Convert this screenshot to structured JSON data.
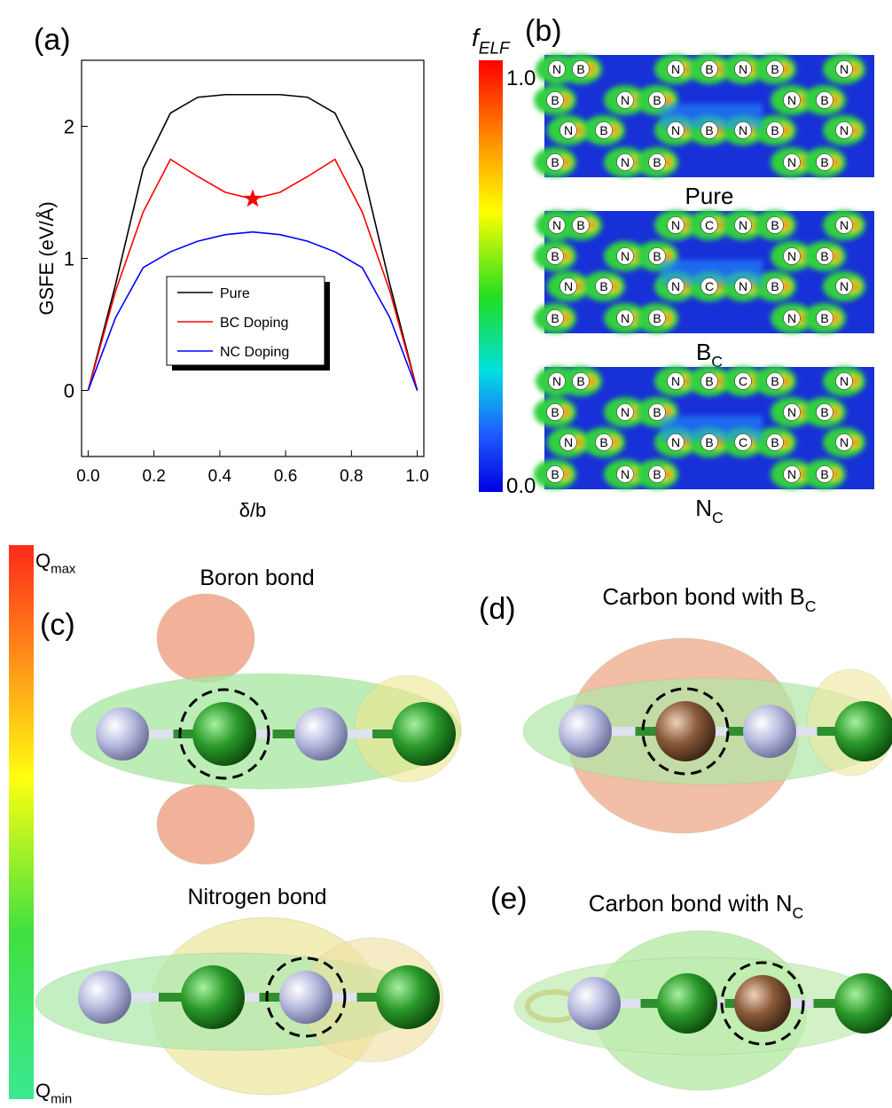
{
  "chart_data": {
    "type": "line",
    "panel_label": "(a)",
    "xlabel": "δ/b",
    "ylabel": "GSFE (eV/Å)",
    "x": [
      0,
      0.083,
      0.167,
      0.25,
      0.333,
      0.417,
      0.5,
      0.583,
      0.667,
      0.75,
      0.833,
      0.917,
      1
    ],
    "series": [
      {
        "name": "Pure",
        "color": "#000000",
        "values": [
          0,
          0.8,
          1.68,
          2.1,
          2.22,
          2.24,
          2.24,
          2.24,
          2.22,
          2.1,
          1.68,
          0.8,
          0
        ]
      },
      {
        "name": "BC Doping",
        "color": "#ff0000",
        "values": [
          0,
          0.75,
          1.35,
          1.75,
          1.62,
          1.5,
          1.45,
          1.5,
          1.62,
          1.75,
          1.35,
          0.75,
          0
        ]
      },
      {
        "name": "NC Doping",
        "color": "#0000ff",
        "values": [
          0,
          0.55,
          0.93,
          1.05,
          1.13,
          1.18,
          1.2,
          1.18,
          1.13,
          1.05,
          0.93,
          0.55,
          0
        ]
      }
    ],
    "marker": {
      "x": 0.5,
      "y": 1.45,
      "color": "#ff0000"
    },
    "xlim": [
      -0.02,
      1.02
    ],
    "ylim": [
      -0.5,
      2.5
    ],
    "xticks": [
      {
        "value": 0,
        "label": "0.0"
      },
      {
        "value": 0.2,
        "label": "0.2"
      },
      {
        "value": 0.4,
        "label": "0.4"
      },
      {
        "value": 0.6,
        "label": "0.6"
      },
      {
        "value": 0.8,
        "label": "0.8"
      },
      {
        "value": 1,
        "label": "1.0"
      }
    ],
    "yticks": [
      0,
      1,
      2
    ],
    "legend": "center"
  },
  "elf": {
    "panel_label": "(b)",
    "colorbar": {
      "title": {
        "base": "f",
        "sub": "ELF"
      },
      "max_label": "1.0",
      "min_label": "0.0"
    },
    "maps": [
      {
        "caption": {
          "base": "Pure"
        },
        "atoms": [
          "N",
          "B",
          "N",
          "B",
          "N",
          "B",
          "N",
          "B",
          "N",
          "B",
          "N",
          "B",
          "N",
          "B",
          "N",
          "B",
          "N",
          "B",
          "N",
          "B",
          "N",
          "B",
          "N",
          "B"
        ]
      },
      {
        "caption": {
          "base": "B",
          "sub": "C"
        },
        "atoms": [
          "N",
          "B",
          "N",
          "C",
          "N",
          "B",
          "N",
          "B",
          "N",
          "B",
          "N",
          "B",
          "N",
          "B",
          "N",
          "C",
          "N",
          "B",
          "N",
          "B",
          "N",
          "B",
          "N",
          "B"
        ]
      },
      {
        "caption": {
          "base": "N",
          "sub": "C"
        },
        "atoms": [
          "N",
          "B",
          "N",
          "B",
          "C",
          "B",
          "N",
          "B",
          "N",
          "B",
          "N",
          "B",
          "N",
          "B",
          "N",
          "B",
          "C",
          "B",
          "N",
          "B",
          "N",
          "B",
          "N",
          "B"
        ]
      }
    ]
  },
  "charge": {
    "colorbar": {
      "max": {
        "base": "Q",
        "sub": "max"
      },
      "min": {
        "base": "Q",
        "sub": "min"
      }
    },
    "c": {
      "label": "(c)",
      "top_title": "Boron bond",
      "bottom_title": "Nitrogen bond"
    },
    "d": {
      "label": "(d)",
      "title": {
        "base": "Carbon bond with B",
        "sub": "C"
      }
    },
    "e": {
      "label": "(e)",
      "title": {
        "base": "Carbon bond with N",
        "sub": "C"
      }
    }
  }
}
